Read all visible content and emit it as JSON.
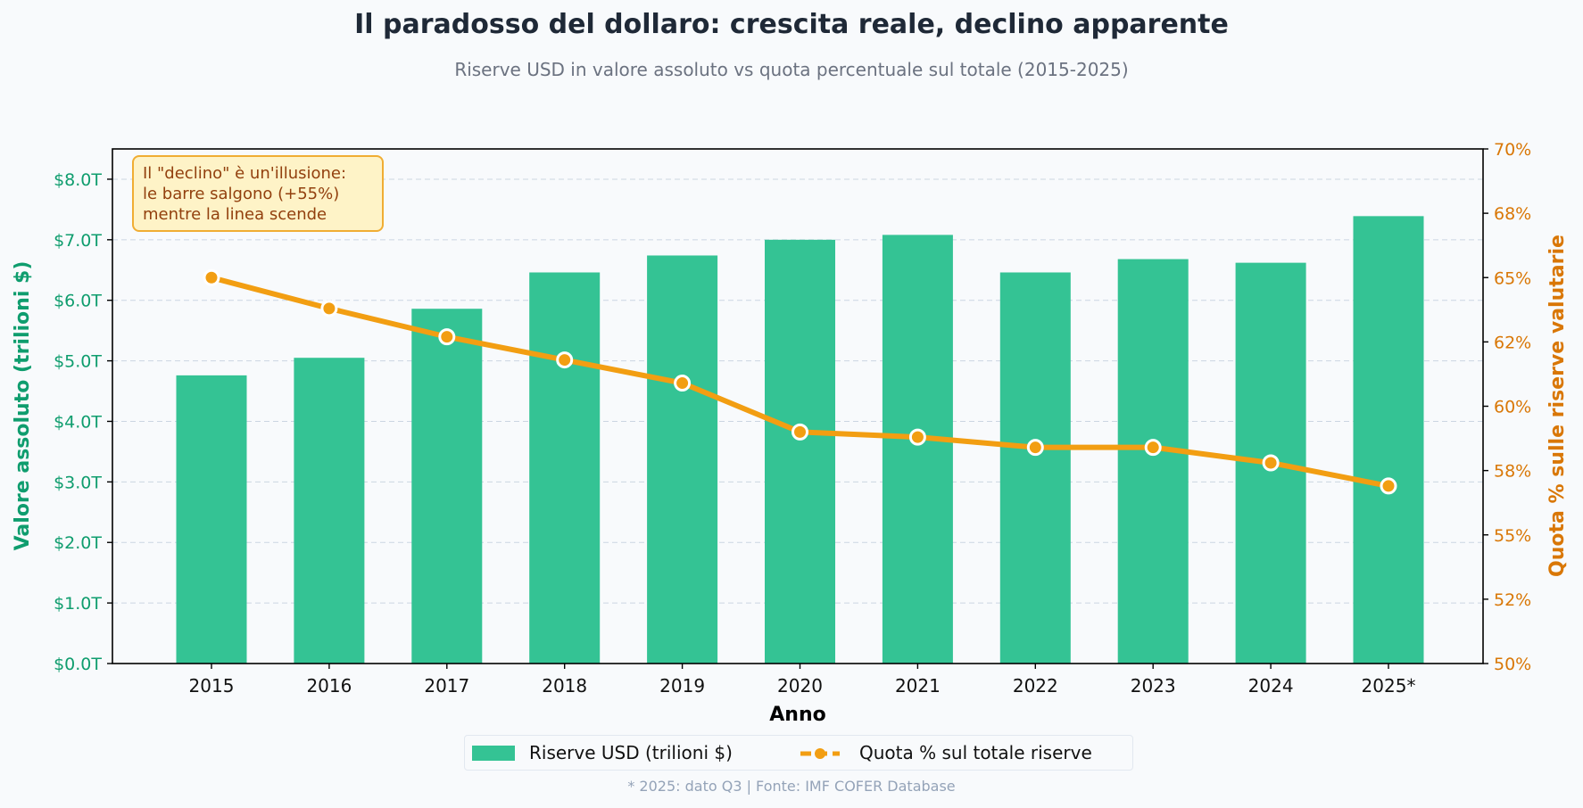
{
  "title": "Il paradosso del dollaro: crescita reale, declino apparente",
  "subtitle": "Riserve USD in valore assoluto vs quota percentuale sul totale (2015-2025)",
  "annotation": {
    "lines": [
      "Il \"declino\" è un'illusione:",
      "le barre salgono (+55%)",
      "mentre la linea scende"
    ]
  },
  "legend": {
    "bar_label": "Riserve USD (trilioni $)",
    "line_label": "Quota % sul totale riserve"
  },
  "footer": "* 2025: dato Q3 | Fonte: IMF COFER Database",
  "colors": {
    "bar": "#34c394",
    "line": "#f29e12",
    "left_axis": "#0f9d6e",
    "right_axis": "#d97706",
    "annotation_bg": "#fef3c7",
    "annotation_border": "#f0ad33",
    "annotation_text": "#92400e"
  },
  "chart_data": {
    "type": "bar+line",
    "title": "Il paradosso del dollaro: crescita reale, declino apparente",
    "xlabel": "Anno",
    "ylabel_left": "Valore assoluto (trilioni $)",
    "ylabel_right": "Quota % sulle riserve valutarie",
    "categories": [
      "2015",
      "2016",
      "2017",
      "2018",
      "2019",
      "2020",
      "2021",
      "2022",
      "2023",
      "2024",
      "2025*"
    ],
    "series": [
      {
        "name": "Riserve USD (trilioni $)",
        "type": "bar",
        "axis": "left",
        "values": [
          4.76,
          5.05,
          5.86,
          6.46,
          6.74,
          7.0,
          7.08,
          6.46,
          6.68,
          6.62,
          7.39
        ]
      },
      {
        "name": "Quota % sul totale riserve",
        "type": "line",
        "axis": "right",
        "values": [
          65.0,
          63.8,
          62.7,
          61.8,
          60.9,
          59.0,
          58.8,
          58.4,
          58.4,
          57.8,
          56.9
        ]
      }
    ],
    "ylim_left": [
      0,
      8.5
    ],
    "ylim_right": [
      50,
      70
    ],
    "yticks_left": [
      0,
      1,
      2,
      3,
      4,
      5,
      6,
      7,
      8
    ],
    "yticklabels_left": [
      "$0.0T",
      "$1.0T",
      "$2.0T",
      "$3.0T",
      "$4.0T",
      "$5.0T",
      "$6.0T",
      "$7.0T",
      "$8.0T"
    ],
    "yticks_right": [
      50,
      52.5,
      55,
      57.5,
      60,
      62.5,
      65,
      67.5,
      70
    ],
    "yticklabels_right": [
      "50%",
      "52%",
      "55%",
      "58%",
      "60%",
      "62%",
      "65%",
      "68%",
      "70%"
    ],
    "grid": true,
    "legend_position": "bottom-center"
  }
}
